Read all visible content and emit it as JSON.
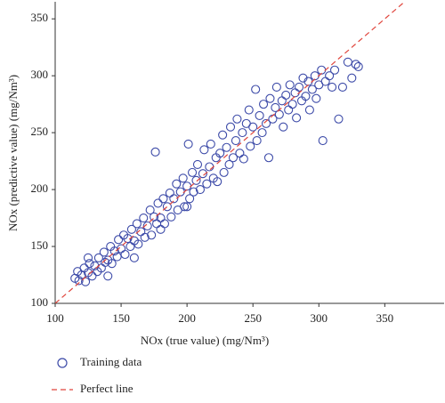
{
  "chart_data": {
    "type": "scatter",
    "xlabel": "NOx (true value) (mg/Nm³)",
    "ylabel": "NOx (predictive value) (mg/Nm³)",
    "xlim": [
      100,
      395
    ],
    "ylim": [
      100,
      365
    ],
    "xticks": [
      100,
      150,
      200,
      250,
      300,
      350
    ],
    "yticks": [
      100,
      150,
      200,
      250,
      300,
      350
    ],
    "series": [
      {
        "name": "Training data",
        "type": "scatter",
        "color": "#3c4aa8",
        "x": [
          115,
          117,
          118,
          120,
          122,
          123,
          125,
          126,
          128,
          130,
          132,
          133,
          135,
          137,
          138,
          140,
          142,
          143,
          145,
          147,
          148,
          150,
          152,
          153,
          155,
          157,
          158,
          160,
          162,
          163,
          165,
          167,
          168,
          170,
          172,
          173,
          175,
          176,
          177,
          178,
          180,
          182,
          183,
          185,
          187,
          188,
          190,
          192,
          193,
          195,
          197,
          198,
          200,
          201,
          202,
          204,
          205,
          207,
          208,
          210,
          212,
          213,
          215,
          217,
          218,
          220,
          222,
          223,
          225,
          227,
          228,
          230,
          232,
          233,
          235,
          237,
          238,
          240,
          242,
          243,
          245,
          247,
          248,
          250,
          252,
          253,
          255,
          257,
          258,
          260,
          262,
          263,
          265,
          267,
          268,
          270,
          272,
          273,
          275,
          277,
          278,
          280,
          282,
          283,
          285,
          287,
          288,
          290,
          292,
          293,
          295,
          297,
          298,
          300,
          302,
          303,
          305,
          308,
          310,
          312,
          315,
          318,
          322,
          325,
          328,
          330,
          140,
          160,
          180,
          200,
          125
        ],
        "values": [
          122,
          128,
          120,
          125,
          131,
          119,
          127,
          135,
          124,
          133,
          128,
          140,
          131,
          145,
          136,
          138,
          150,
          135,
          146,
          141,
          156,
          148,
          160,
          143,
          157,
          150,
          165,
          155,
          170,
          152,
          163,
          175,
          158,
          168,
          182,
          160,
          176,
          233,
          170,
          188,
          175,
          192,
          170,
          185,
          197,
          176,
          192,
          205,
          182,
          198,
          210,
          185,
          203,
          240,
          192,
          215,
          198,
          208,
          222,
          200,
          214,
          235,
          205,
          220,
          240,
          210,
          228,
          207,
          232,
          248,
          215,
          237,
          222,
          255,
          228,
          243,
          262,
          232,
          250,
          227,
          258,
          270,
          238,
          255,
          288,
          243,
          265,
          250,
          275,
          258,
          228,
          280,
          262,
          272,
          290,
          266,
          278,
          255,
          283,
          270,
          292,
          275,
          285,
          263,
          290,
          278,
          298,
          282,
          295,
          270,
          288,
          300,
          280,
          292,
          305,
          243,
          295,
          300,
          290,
          305,
          262,
          290,
          312,
          298,
          310,
          308,
          124,
          140,
          165,
          185,
          140
        ]
      },
      {
        "name": "Perfect line",
        "type": "line",
        "style": "dashed",
        "color": "#e0453c",
        "x": [
          100,
          365
        ],
        "values": [
          100,
          365
        ]
      }
    ]
  }
}
